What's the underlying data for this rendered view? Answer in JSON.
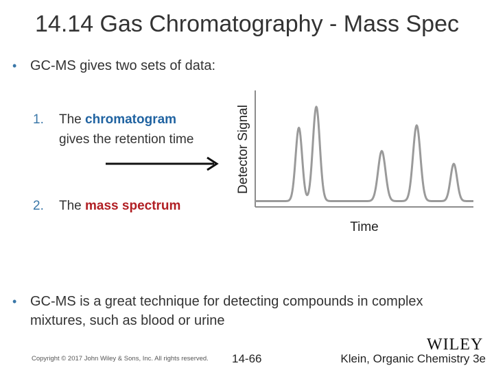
{
  "slide": {
    "title": "14.14 Gas Chromatography - Mass Spec",
    "bullet1": "GC-MS gives two sets of data:",
    "bullet_marker": "•",
    "item1": {
      "number": "1.",
      "pre": "The ",
      "keyword": "chromatogram",
      "post": " gives the retention time"
    },
    "item2": {
      "number": "2.",
      "pre": "The ",
      "keyword": "mass spectrum"
    },
    "bullet2": "GC-MS is a great technique for detecting compounds in complex mixtures, such as blood or urine"
  },
  "chart_data": {
    "type": "line",
    "title": "",
    "xlabel": "Time",
    "ylabel": "Detector Signal",
    "grid": false,
    "legend": "none",
    "xlim": [
      0,
      100
    ],
    "ylim": [
      0,
      100
    ],
    "baseline": 5,
    "peaks": [
      {
        "center": 20,
        "height": 63,
        "width": 1.5
      },
      {
        "center": 28,
        "height": 81,
        "width": 1.6
      },
      {
        "center": 58,
        "height": 43,
        "width": 1.7
      },
      {
        "center": 74,
        "height": 65,
        "width": 1.7
      },
      {
        "center": 91,
        "height": 32,
        "width": 1.5
      }
    ]
  },
  "footer": {
    "copyright": "Copyright © 2017 John Wiley & Sons, Inc. All rights reserved.",
    "page": "14-66",
    "publisher_logo_text": "WILEY",
    "book": "Klein, Organic Chemistry 3e"
  }
}
